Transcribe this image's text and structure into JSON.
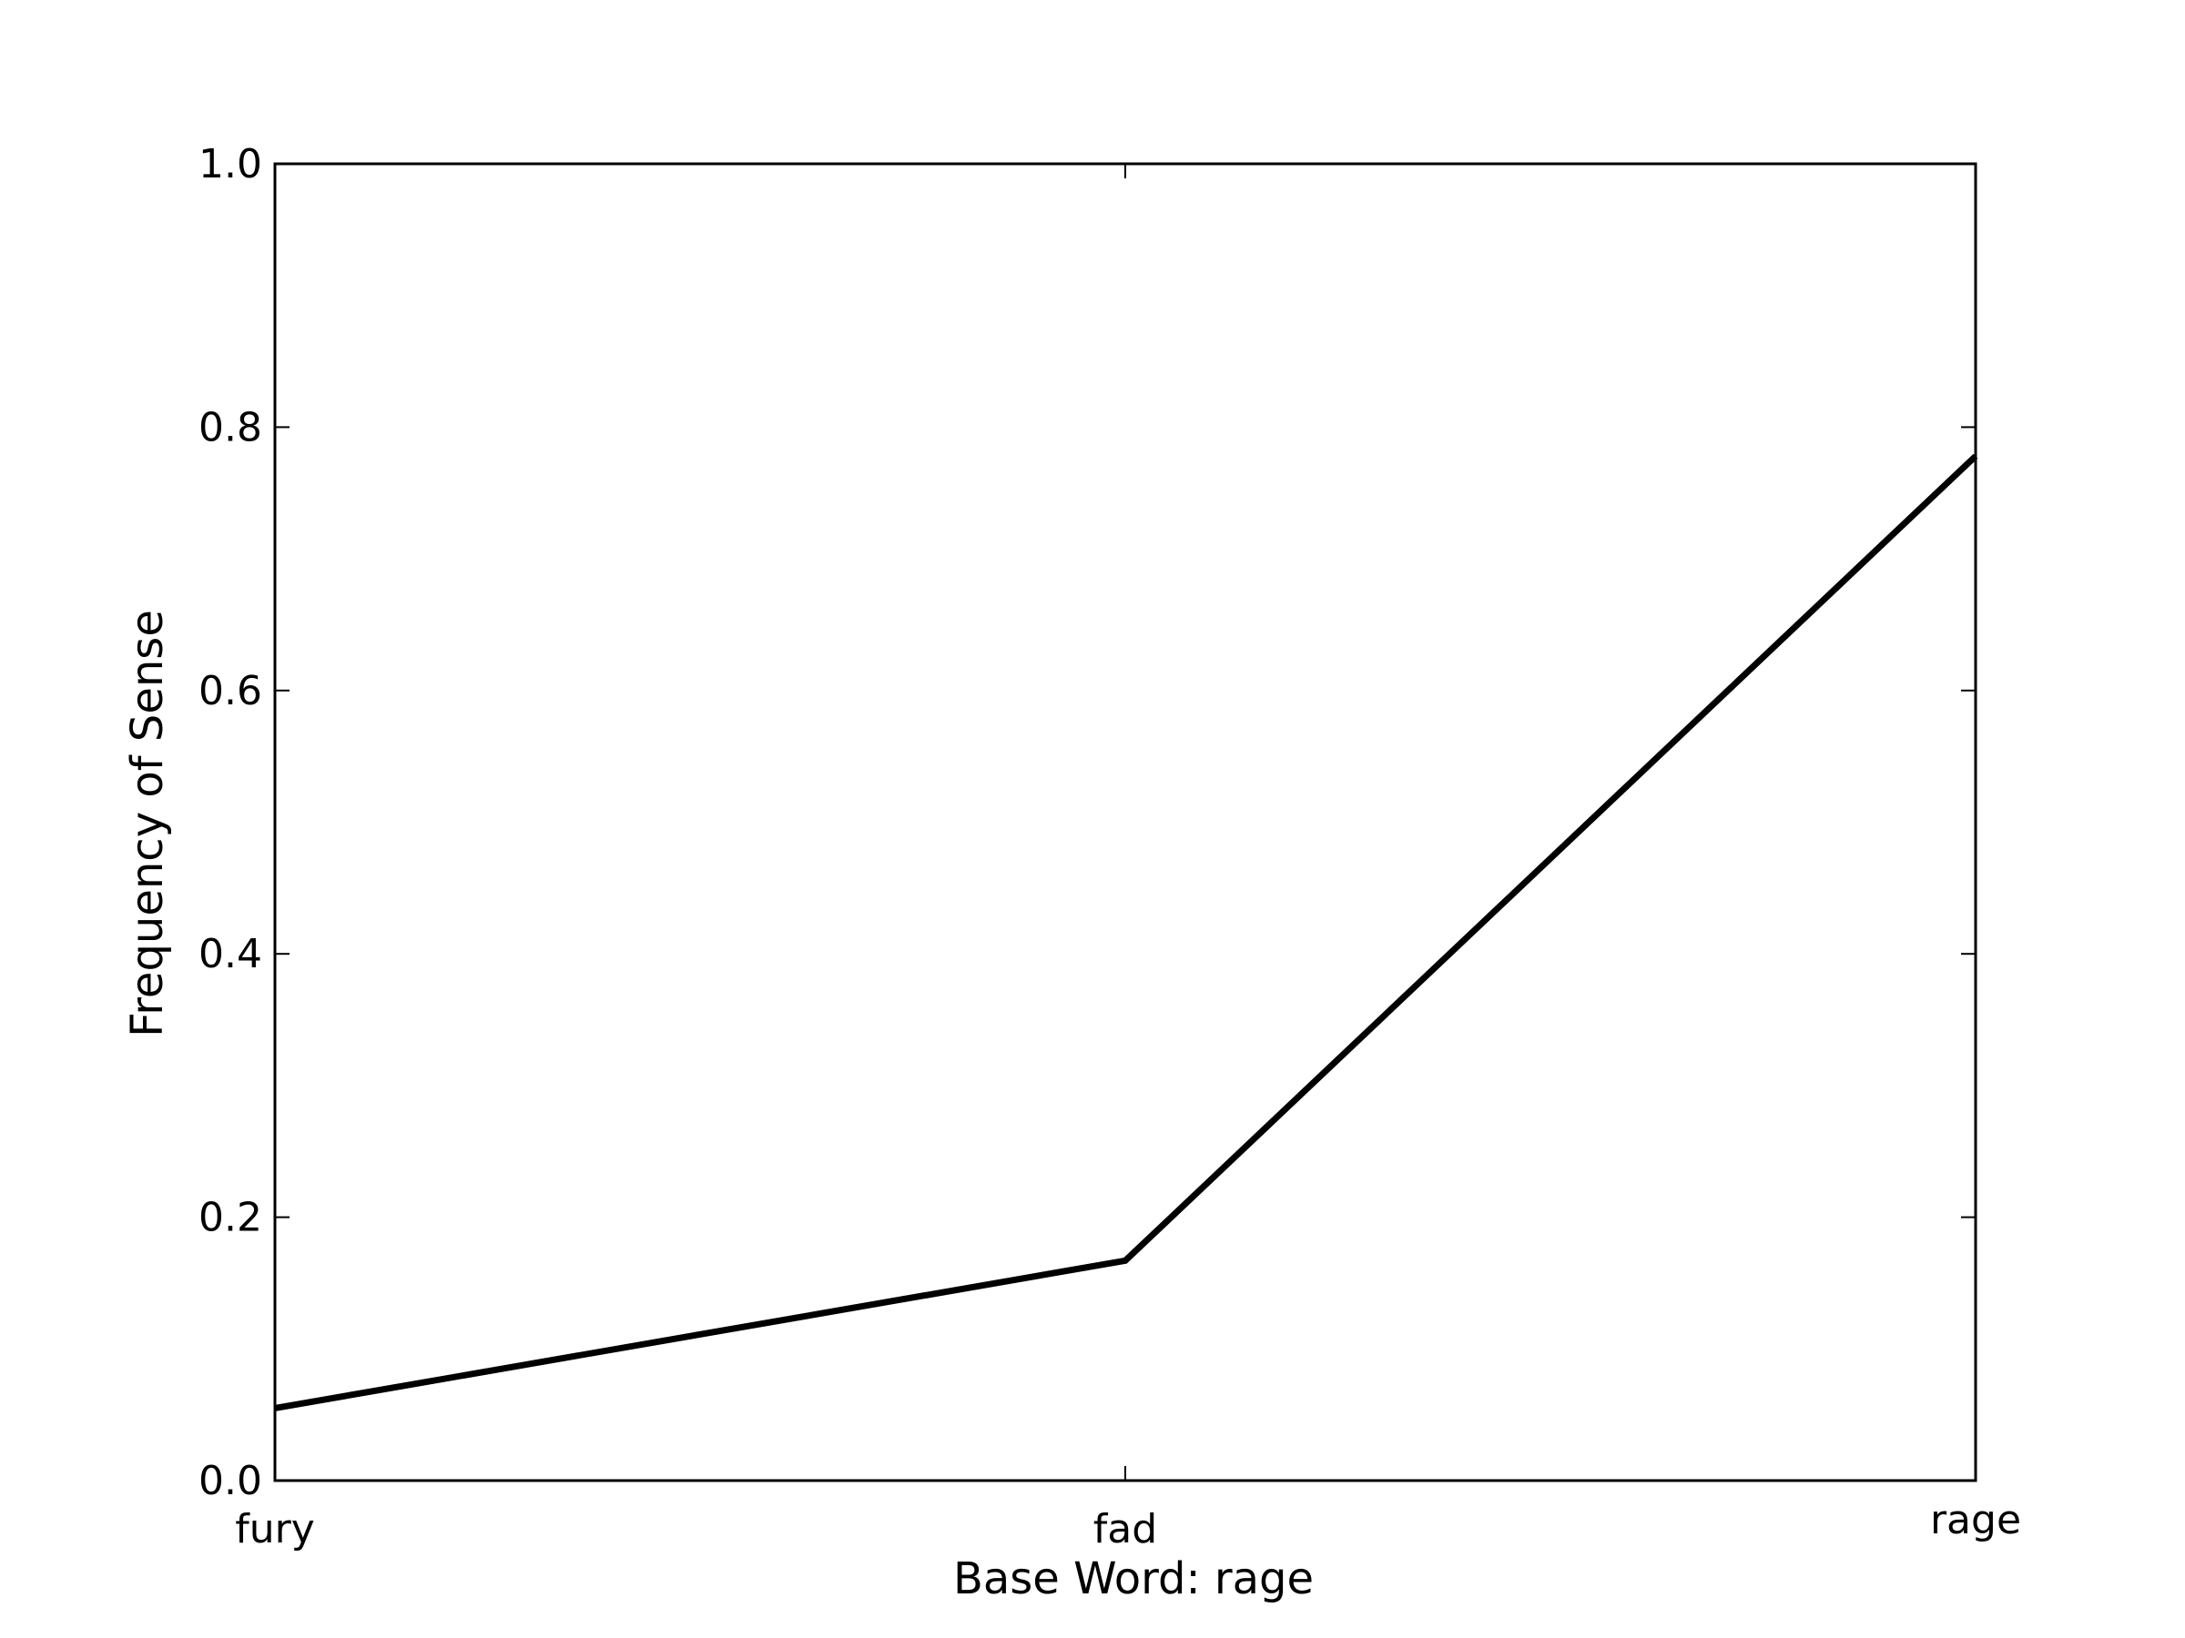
{
  "chart_data": {
    "type": "line",
    "title": "",
    "xlabel": "Base Word: rage",
    "ylabel": "Frequency of Sense",
    "categories": [
      "fury",
      "fad",
      "rage"
    ],
    "series": [
      {
        "values": [
          0.055,
          0.167,
          0.778
        ]
      }
    ],
    "ylim": [
      0,
      1
    ],
    "yticks": [
      0.0,
      0.2,
      0.4,
      0.6,
      0.8,
      1.0
    ],
    "ytick_labels": [
      "0.0",
      "0.2",
      "0.4",
      "0.6",
      "0.8",
      "1.0"
    ],
    "grid": false,
    "line_color": "#000000"
  }
}
